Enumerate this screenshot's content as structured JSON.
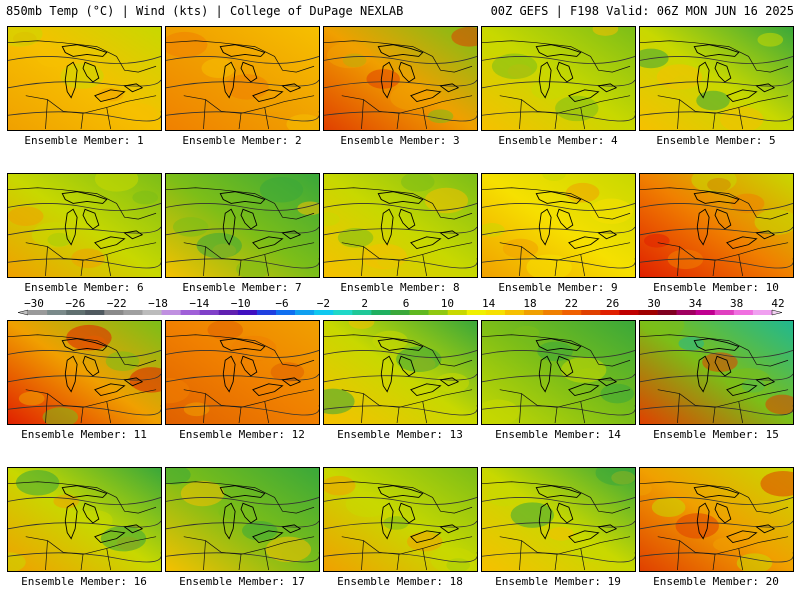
{
  "header": {
    "left_title": "850mb Temp (°C) | Wind (kts) | College of DuPage NEXLAB",
    "right_title": "00Z GEFS | F198 Valid: 06Z MON JUN 16 2025"
  },
  "members": [
    {
      "label": "Ensemble Member: 1",
      "palette": [
        "#f0a000",
        "#f6c000",
        "#c8d800"
      ]
    },
    {
      "label": "Ensemble Member: 2",
      "palette": [
        "#f08000",
        "#f0a000",
        "#f6c000"
      ]
    },
    {
      "label": "Ensemble Member: 3",
      "palette": [
        "#e04000",
        "#f0a000",
        "#7cbe18"
      ]
    },
    {
      "label": "Ensemble Member: 4",
      "palette": [
        "#f6c000",
        "#c8d800",
        "#7cbe18"
      ]
    },
    {
      "label": "Ensemble Member: 5",
      "palette": [
        "#f6c000",
        "#c8d800",
        "#3aa83a"
      ]
    },
    {
      "label": "Ensemble Member: 6",
      "palette": [
        "#f0a000",
        "#c8d800",
        "#7cbe18"
      ]
    },
    {
      "label": "Ensemble Member: 7",
      "palette": [
        "#f6c000",
        "#7cbe18",
        "#3aa83a"
      ]
    },
    {
      "label": "Ensemble Member: 8",
      "palette": [
        "#f6c000",
        "#c8d800",
        "#7cbe18"
      ]
    },
    {
      "label": "Ensemble Member: 9",
      "palette": [
        "#f0a000",
        "#f6e000",
        "#c8d800"
      ]
    },
    {
      "label": "Ensemble Member: 10",
      "palette": [
        "#e02000",
        "#f08000",
        "#c8d800"
      ]
    },
    {
      "label": "Ensemble Member: 11",
      "palette": [
        "#e02000",
        "#f0a000",
        "#7cbe18"
      ]
    },
    {
      "label": "Ensemble Member: 12",
      "palette": [
        "#e06000",
        "#f08000",
        "#f0a000"
      ]
    },
    {
      "label": "Ensemble Member: 13",
      "palette": [
        "#f6c000",
        "#c8d800",
        "#3aa83a"
      ]
    },
    {
      "label": "Ensemble Member: 14",
      "palette": [
        "#c8d800",
        "#7cbe18",
        "#3aa83a"
      ]
    },
    {
      "label": "Ensemble Member: 15",
      "palette": [
        "#e04000",
        "#7cbe18",
        "#20b890"
      ]
    },
    {
      "label": "Ensemble Member: 16",
      "palette": [
        "#f0a000",
        "#c8d800",
        "#3aa83a"
      ]
    },
    {
      "label": "Ensemble Member: 17",
      "palette": [
        "#f6c000",
        "#7cbe18",
        "#3aa83a"
      ]
    },
    {
      "label": "Ensemble Member: 18",
      "palette": [
        "#f0a000",
        "#c8d800",
        "#7cbe18"
      ]
    },
    {
      "label": "Ensemble Member: 19",
      "palette": [
        "#f6c000",
        "#c8d800",
        "#3aa83a"
      ]
    },
    {
      "label": "Ensemble Member: 20",
      "palette": [
        "#e04000",
        "#f0a000",
        "#c8d800"
      ]
    }
  ],
  "colorbar": {
    "labels": [
      "−30",
      "−26",
      "−22",
      "−18",
      "−14",
      "−10",
      "−6",
      "−2",
      "2",
      "6",
      "10",
      "14",
      "18",
      "22",
      "26",
      "30",
      "34",
      "38",
      "42"
    ],
    "colors": [
      "#9a9a9a",
      "#7a8a8a",
      "#607070",
      "#505a60",
      "#8a8a8a",
      "#a0a0a0",
      "#bcbcbc",
      "#c090e0",
      "#a060d8",
      "#8040c8",
      "#6020b0",
      "#4010c0",
      "#2040e0",
      "#1070f0",
      "#10a0f0",
      "#10c8f0",
      "#20d8c8",
      "#20c898",
      "#20b060",
      "#3aa83a",
      "#60b820",
      "#90c810",
      "#c8d800",
      "#f0f000",
      "#f6e000",
      "#f6c000",
      "#f0a000",
      "#f08000",
      "#f06000",
      "#e04000",
      "#e02000",
      "#c00000",
      "#a00000",
      "#800020",
      "#a00060",
      "#c00090",
      "#e040c0",
      "#f070e0",
      "#f0a0f0"
    ]
  }
}
